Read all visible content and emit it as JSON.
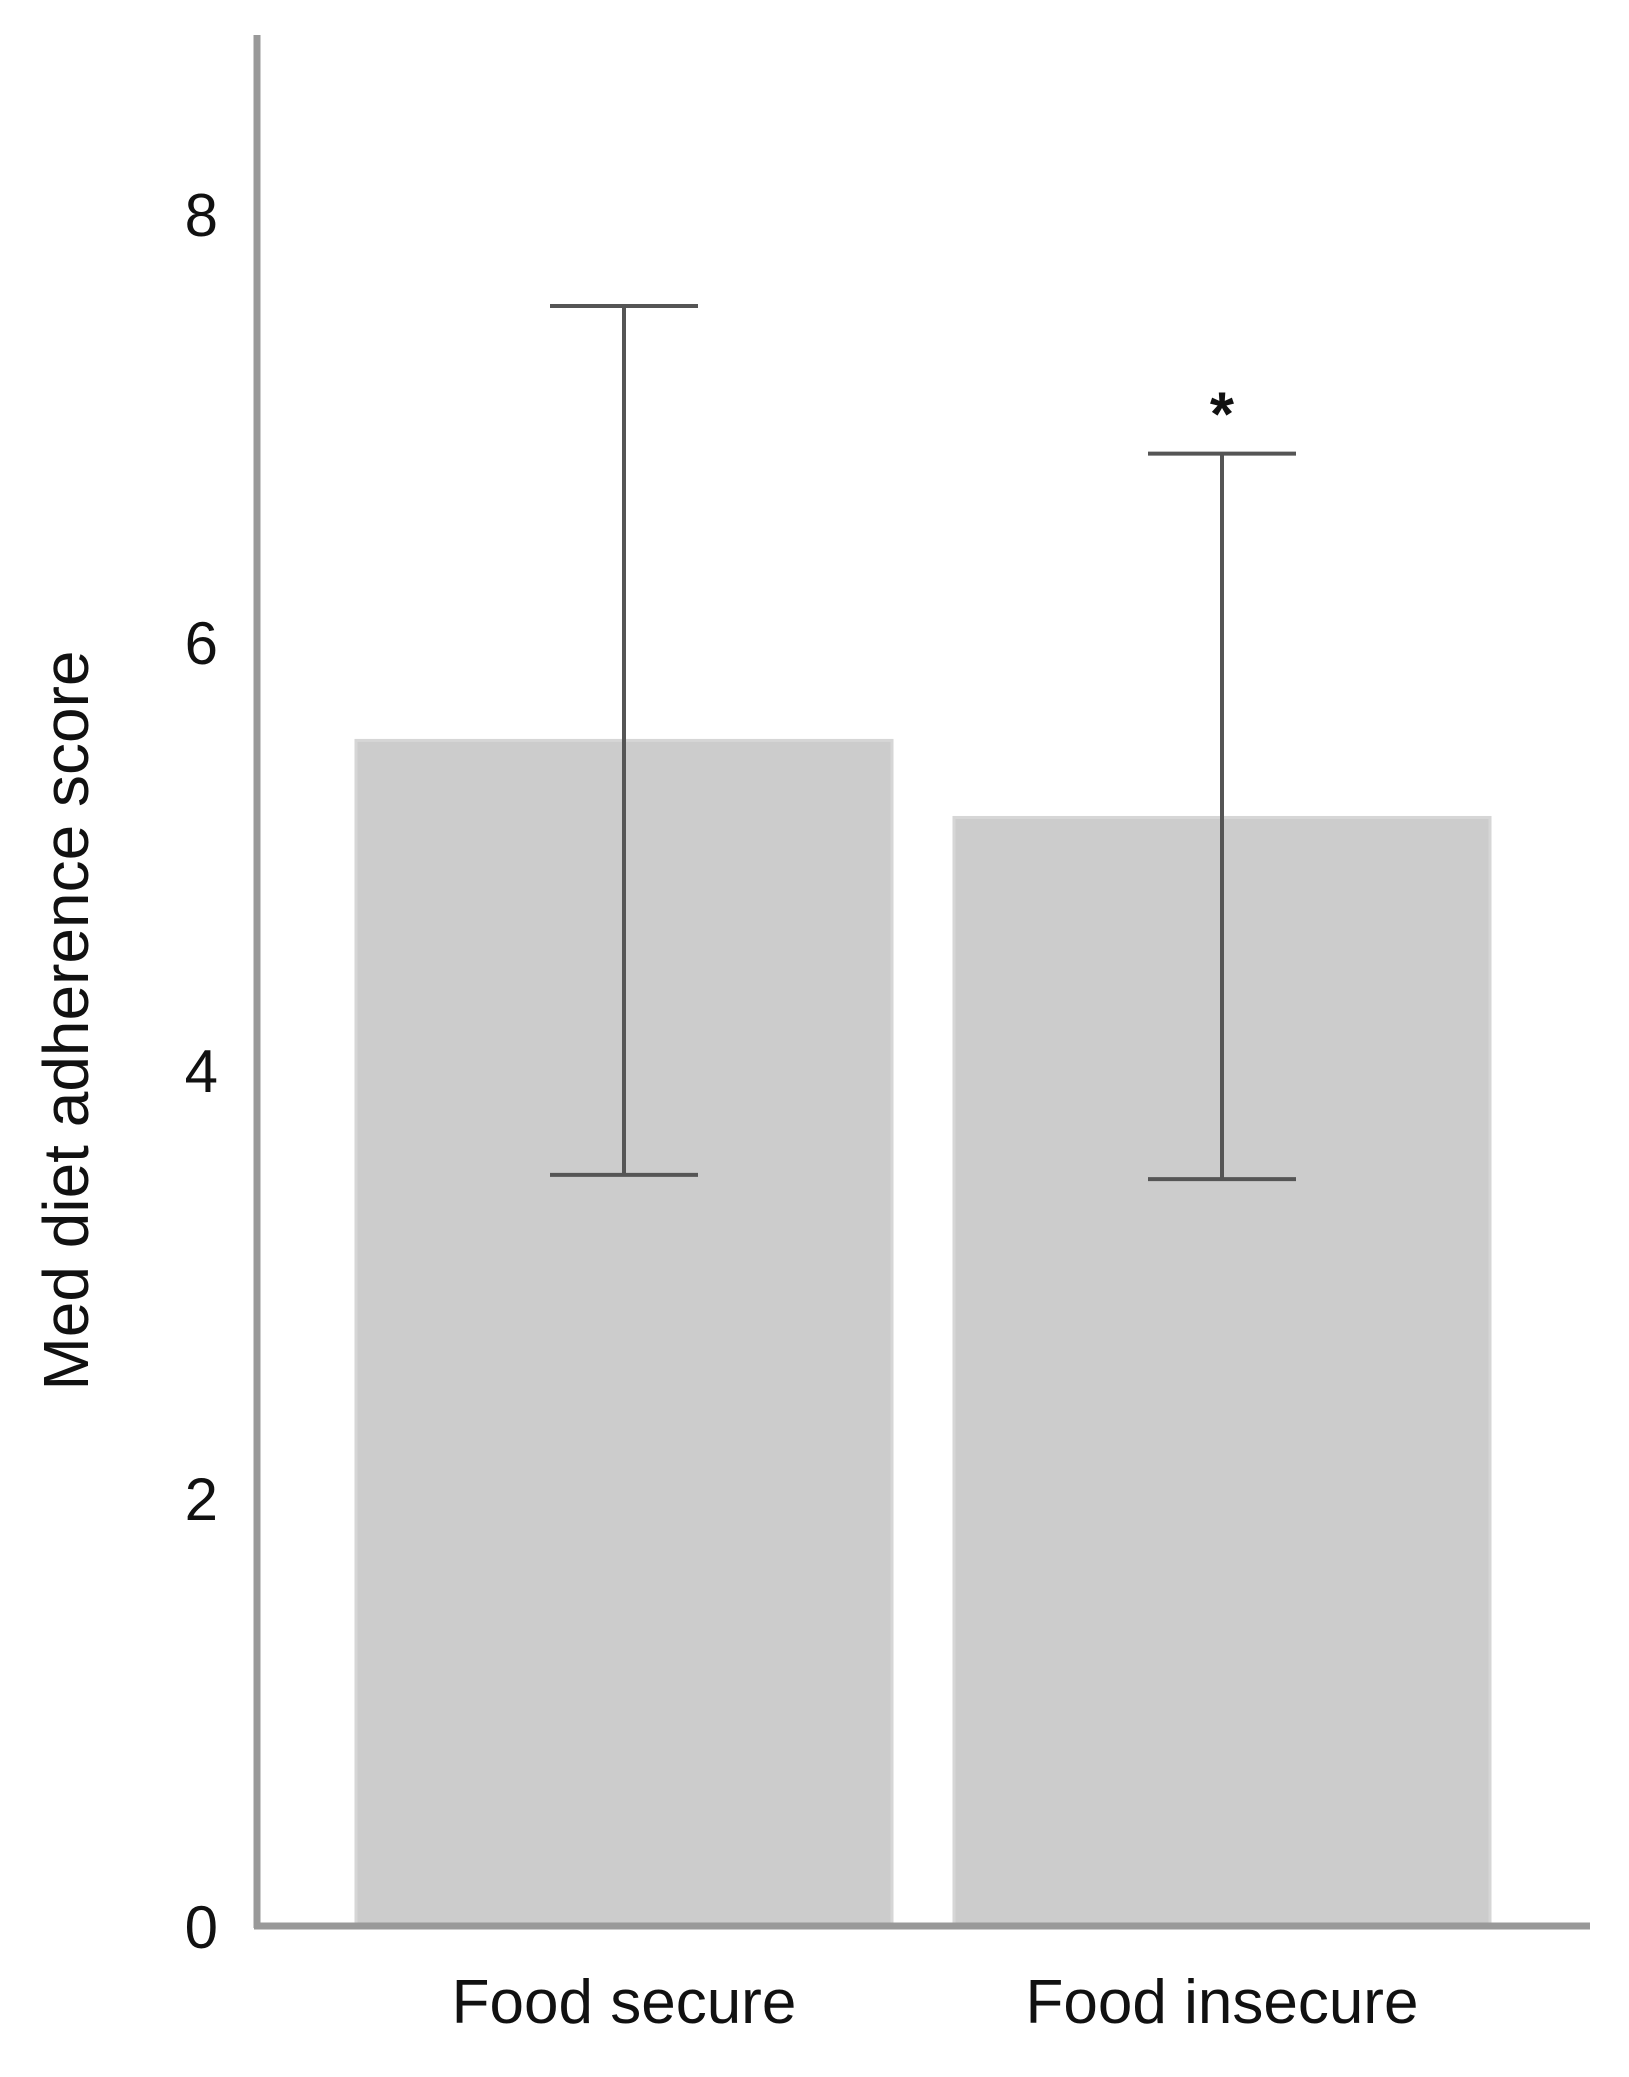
{
  "chart_data": {
    "type": "bar",
    "title": "",
    "xlabel": "",
    "ylabel": "Med diet adherence score",
    "categories": [
      "Food secure",
      "Food insecure"
    ],
    "values": [
      5.54,
      5.18
    ],
    "error_low": [
      3.51,
      3.49
    ],
    "error_high": [
      7.57,
      6.88
    ],
    "annotations": [
      {
        "category": "Food insecure",
        "text": "*"
      }
    ],
    "ylim": [
      0,
      8.9
    ],
    "yticks": [
      0,
      2,
      4,
      6,
      8
    ],
    "grid": false,
    "legend": "none",
    "colors": {
      "bar": "#cccccc",
      "axis": "#999999",
      "error_bar": "#555555"
    }
  }
}
